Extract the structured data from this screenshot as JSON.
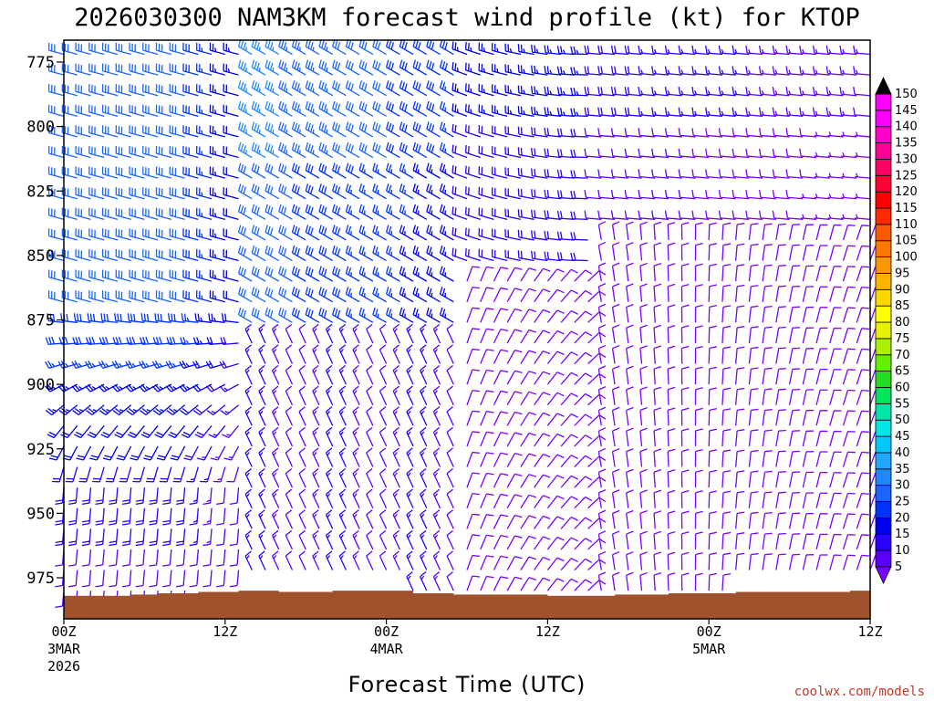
{
  "chart_data": {
    "type": "wind_barb_profile",
    "title": "2026030300 NAM3KM forecast wind profile (kt) for KTOP",
    "xlabel": "Forecast Time (UTC)",
    "ylabel": "",
    "credit": "coolwx.com/models",
    "y_axis": {
      "unit": "hPa",
      "range": [
        985,
        768
      ],
      "ticks": [
        775,
        800,
        825,
        850,
        875,
        900,
        925,
        950,
        975
      ],
      "tick_labels": [
        "775",
        "800",
        "825",
        "850",
        "875",
        "900",
        "925",
        "950",
        "975"
      ]
    },
    "x_axis": {
      "unit": "forecast hour",
      "range": [
        0,
        60
      ],
      "ticks": [
        {
          "hour": 0,
          "lines": [
            "00Z",
            "3MAR",
            "2026"
          ]
        },
        {
          "hour": 12,
          "lines": [
            "12Z"
          ]
        },
        {
          "hour": 24,
          "lines": [
            "00Z",
            "4MAR"
          ]
        },
        {
          "hour": 36,
          "lines": [
            "12Z"
          ]
        },
        {
          "hour": 48,
          "lines": [
            "00Z",
            "5MAR"
          ]
        },
        {
          "hour": 60,
          "lines": [
            "12Z"
          ]
        }
      ]
    },
    "surface_pressure_hpa": [
      {
        "hour": 0,
        "p": 982
      },
      {
        "hour": 5,
        "p": 981.5
      },
      {
        "hour": 7,
        "p": 981
      },
      {
        "hour": 10,
        "p": 980.5
      },
      {
        "hour": 13,
        "p": 980
      },
      {
        "hour": 16,
        "p": 980.5
      },
      {
        "hour": 20,
        "p": 980
      },
      {
        "hour": 24,
        "p": 980
      },
      {
        "hour": 26,
        "p": 981
      },
      {
        "hour": 29,
        "p": 981.5
      },
      {
        "hour": 33,
        "p": 981.5
      },
      {
        "hour": 36,
        "p": 982
      },
      {
        "hour": 38,
        "p": 982
      },
      {
        "hour": 40,
        "p": 982
      },
      {
        "hour": 41,
        "p": 981.5
      },
      {
        "hour": 45,
        "p": 981
      },
      {
        "hour": 50,
        "p": 980.5
      },
      {
        "hour": 54,
        "p": 980.5
      },
      {
        "hour": 57,
        "p": 980.5
      },
      {
        "hour": 58.5,
        "p": 980
      },
      {
        "hour": 60,
        "p": 980.5
      }
    ],
    "wind_levels_hpa": [
      772,
      780,
      788,
      796,
      804,
      812,
      820,
      828,
      836,
      844,
      852,
      860,
      868,
      876,
      884,
      892,
      900,
      908,
      916,
      924,
      932,
      940,
      948,
      956,
      964,
      972,
      980
    ],
    "wind_hours": [
      0,
      1,
      2,
      3,
      4,
      5,
      6,
      7,
      8,
      9,
      10,
      11,
      12,
      13,
      14,
      15,
      16,
      17,
      18,
      19,
      20,
      21,
      22,
      23,
      24,
      25,
      26,
      27,
      28,
      29,
      30,
      31,
      32,
      33,
      34,
      35,
      36,
      37,
      38,
      39,
      40,
      41,
      42,
      43,
      44,
      45,
      46,
      47,
      48,
      49,
      50,
      51,
      52,
      53,
      54,
      55,
      56,
      57,
      58,
      59,
      60
    ],
    "wind_field_description": "Upper levels west-northwesterly 20-40 kt early, weakening and veering later; low levels southerly 10-25 kt first 12h, then northwesterly/northerly 10-20 kt.",
    "colorbar": {
      "unit": "kt",
      "levels": [
        5,
        10,
        15,
        20,
        25,
        30,
        35,
        40,
        45,
        50,
        55,
        60,
        65,
        70,
        75,
        80,
        85,
        90,
        95,
        100,
        105,
        110,
        115,
        120,
        125,
        130,
        135,
        140,
        145,
        150
      ],
      "colors": [
        "#7a00ff",
        "#5a00ff",
        "#2a00ff",
        "#0000ee",
        "#0033ff",
        "#1a66ff",
        "#1e88ff",
        "#1ea8ff",
        "#00c8ff",
        "#00e6e6",
        "#00e6a8",
        "#00e65a",
        "#22dd22",
        "#66ee00",
        "#aaf000",
        "#e6f000",
        "#ffff00",
        "#ffd700",
        "#ffb400",
        "#ff9600",
        "#ff7800",
        "#ff5a00",
        "#ff2a00",
        "#ff0000",
        "#ff0033",
        "#ff0066",
        "#ff0099",
        "#ff00cc",
        "#ff00ff",
        "#000000"
      ]
    }
  }
}
